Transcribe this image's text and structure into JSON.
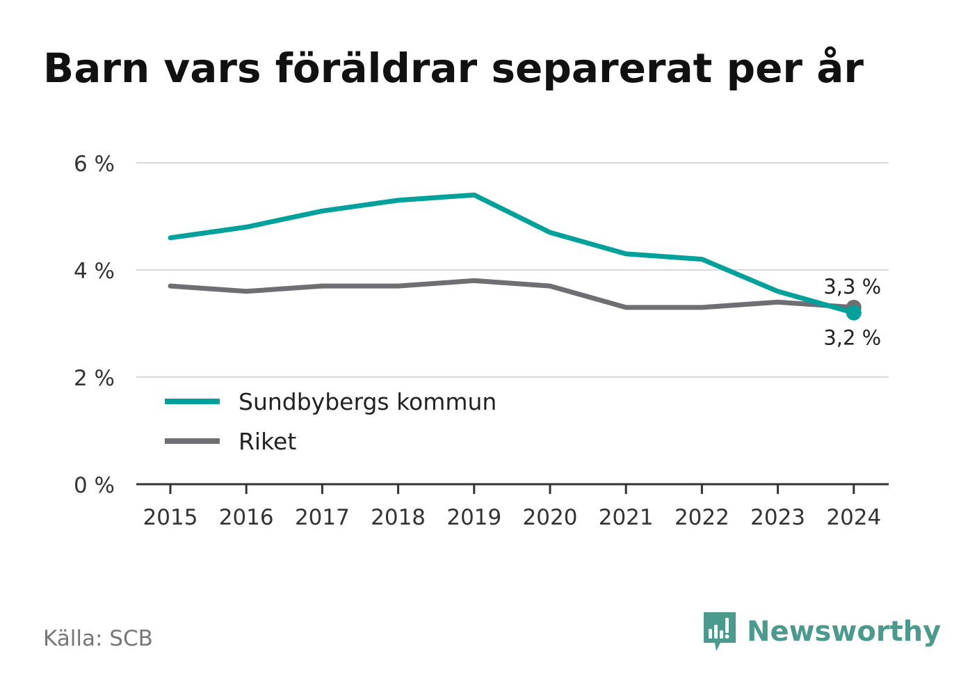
{
  "chart_data": {
    "type": "line",
    "title": "Barn vars föräldrar separerat per år",
    "xlabel": "",
    "ylabel": "",
    "categories": [
      "2015",
      "2016",
      "2017",
      "2018",
      "2019",
      "2020",
      "2021",
      "2022",
      "2023",
      "2024"
    ],
    "y_ticks": [
      "0 %",
      "2 %",
      "4 %",
      "6 %"
    ],
    "y_tick_values": [
      0,
      2,
      4,
      6
    ],
    "ylim": [
      0,
      6
    ],
    "grid": true,
    "legend_position": "bottom-left",
    "series": [
      {
        "name": "Sundbybergs kommun",
        "color": "#00a19a",
        "values": [
          4.6,
          4.8,
          5.1,
          5.3,
          5.4,
          4.7,
          4.3,
          4.2,
          3.6,
          3.2
        ],
        "end_label": "3,2 %"
      },
      {
        "name": "Riket",
        "color": "#6e6e73",
        "values": [
          3.7,
          3.6,
          3.7,
          3.7,
          3.8,
          3.7,
          3.3,
          3.3,
          3.4,
          3.3
        ],
        "end_label": "3,3 %"
      }
    ]
  },
  "footer": {
    "source": "Källa: SCB",
    "brand": "Newsworthy",
    "brand_color": "#4a9b8e",
    "brand_icon": "newsworthy-logo-icon"
  }
}
